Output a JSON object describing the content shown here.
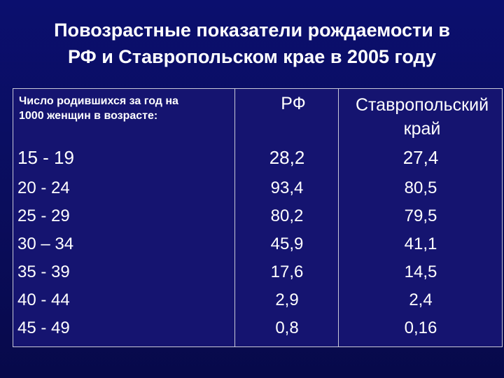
{
  "title": {
    "line1": "Повозрастные показатели рождаемости в",
    "line2": "РФ и Ставропольском крае в 2005 году"
  },
  "table": {
    "header": {
      "label_line1": "Число родившихся за год на",
      "label_line2": "1000 женщин в возрасте:",
      "rf": "РФ",
      "region_line1": "Ставропольский",
      "region_line2": "край"
    },
    "rows": [
      {
        "age": "15 - 19",
        "rf": "28,2",
        "region": "27,4"
      },
      {
        "age": "20 - 24",
        "rf": "93,4",
        "region": "80,5"
      },
      {
        "age": "25 - 29",
        "rf": "80,2",
        "region": "79,5"
      },
      {
        "age": "30 – 34",
        "rf": "45,9",
        "region": "41,1"
      },
      {
        "age": "35 - 39",
        "rf": "17,6",
        "region": "14,5"
      },
      {
        "age": "40 - 44",
        "rf": "2,9",
        "region": "2,4"
      },
      {
        "age": "45 - 49",
        "rf": "0,8",
        "region": "0,16"
      }
    ]
  }
}
